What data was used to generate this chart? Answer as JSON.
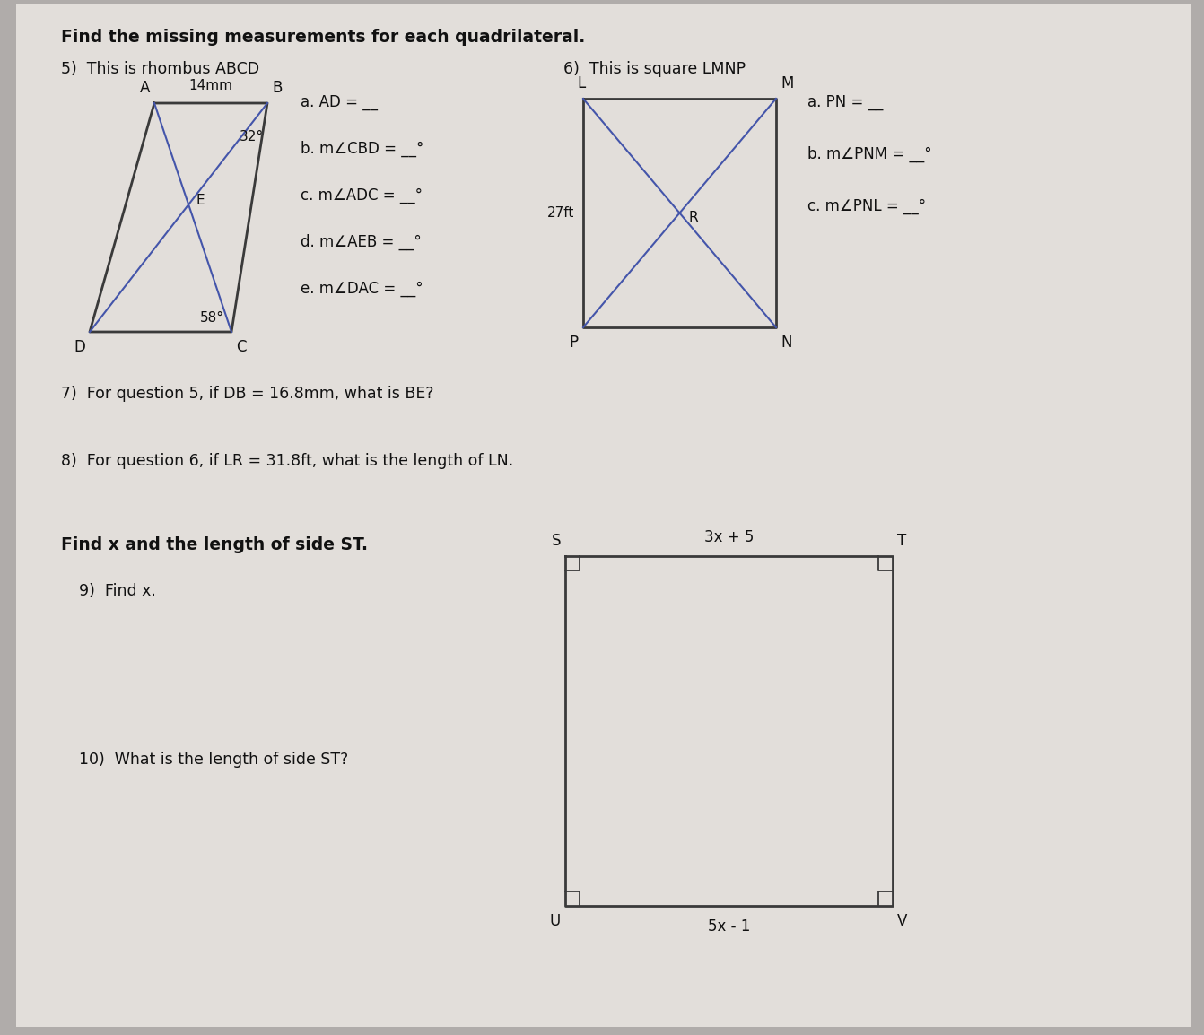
{
  "bg_color": "#b8b4b0",
  "paper_color": "#e0dcd8",
  "title": "Find the missing measurements for each quadrilateral.",
  "q5_label": "5)  This is rhombus ABCD",
  "q6_label": "6)  This is square LMNP",
  "q7_text": "7)  For question 5, if DB = 16.8mm, what is BE?",
  "q8_text": "8)  For question 6, if LR = 31.8ft, what is the length of LN.",
  "find_text": "Find x and the length of side ST.",
  "q9_text": "9)  Find x.",
  "q10_text": "10)  What is the length of side ST?",
  "q5_answers": [
    "a. AD = __",
    "b. m∠CBD = __°",
    "c. m∠ADC = __°",
    "d. m∠AEB = __°",
    "e. m∠DAC = __°"
  ],
  "q6_answers": [
    "a. PN = __",
    "b. m∠PNM = __°",
    "c. m∠PNL = __°"
  ],
  "rhombus_color": "#3a3a3a",
  "square_color": "#3a3a3a",
  "rect_color": "#3a3a3a",
  "top_label_rhombus": "14mm",
  "angle1": "32°",
  "angle2": "58°",
  "square_side_label": "27ft",
  "rect_top_label": "3x + 5",
  "rect_bottom_label": "5x - 1"
}
